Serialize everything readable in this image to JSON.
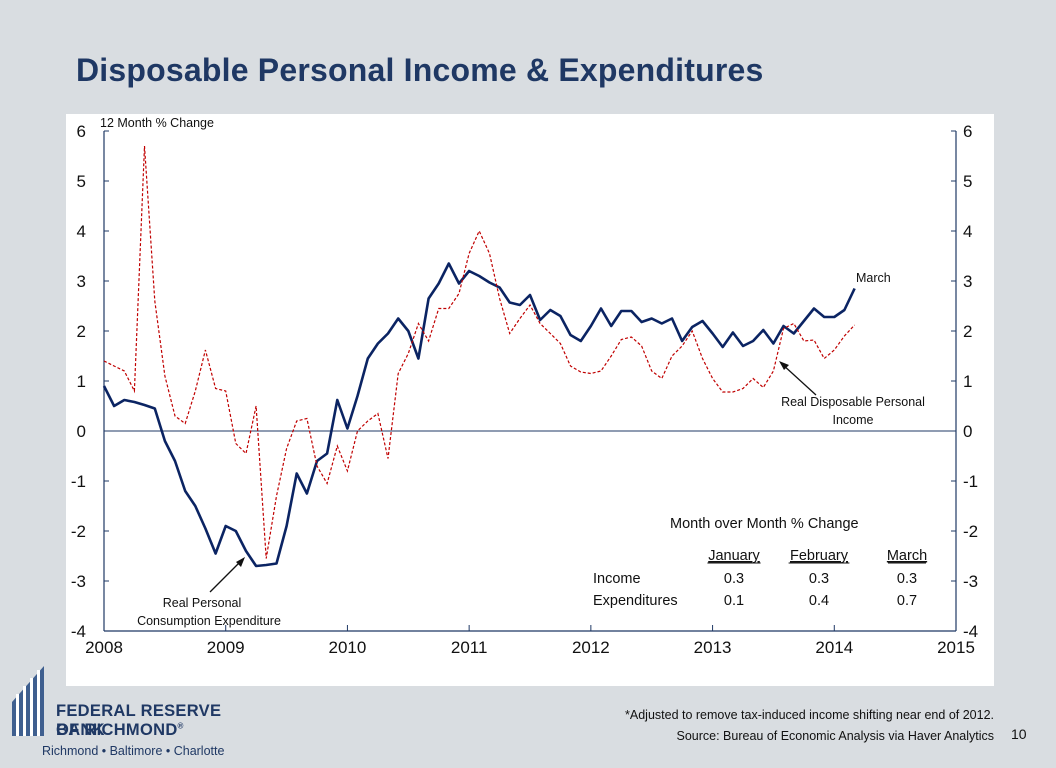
{
  "title": "Disposable Personal Income & Expenditures",
  "colors": {
    "background": "#d9dde1",
    "title": "#1f3864",
    "income": "#0b2463",
    "expenditure": "#c00000",
    "axis": "#1f3864"
  },
  "chart_data": {
    "type": "line",
    "ylabel": "12 Month % Change",
    "ylim": [
      -4,
      6
    ],
    "xlim": [
      2008,
      2015
    ],
    "yticks": [
      "6",
      "5",
      "4",
      "3",
      "2",
      "1",
      "0",
      "-1",
      "-2",
      "-3",
      "-4"
    ],
    "xticks": [
      "2008",
      "2009",
      "2010",
      "2011",
      "2012",
      "2013",
      "2014",
      "2015"
    ],
    "grid": false,
    "series": [
      {
        "name": "Real Disposable Personal Income",
        "style": "solid",
        "x": [
          2008.0,
          2008.083,
          2008.167,
          2008.25,
          2008.333,
          2008.417,
          2008.5,
          2008.583,
          2008.667,
          2008.75,
          2008.833,
          2008.917,
          2009.0,
          2009.083,
          2009.167,
          2009.25,
          2009.333,
          2009.417,
          2009.5,
          2009.583,
          2009.667,
          2009.75,
          2009.833,
          2009.917,
          2010.0,
          2010.083,
          2010.167,
          2010.25,
          2010.333,
          2010.417,
          2010.5,
          2010.583,
          2010.667,
          2010.75,
          2010.833,
          2010.917,
          2011.0,
          2011.083,
          2011.167,
          2011.25,
          2011.333,
          2011.417,
          2011.5,
          2011.583,
          2011.667,
          2011.75,
          2011.833,
          2011.917,
          2012.0,
          2012.083,
          2012.167,
          2012.25,
          2012.333,
          2012.417,
          2012.5,
          2012.583,
          2012.667,
          2012.75,
          2012.833,
          2012.917,
          2013.0,
          2013.083,
          2013.167,
          2013.25,
          2013.333,
          2013.417,
          2013.5,
          2013.583,
          2013.667,
          2013.75,
          2013.833,
          2013.917,
          2014.0,
          2014.083,
          2014.167
        ],
        "values": [
          0.9,
          0.5,
          0.62,
          0.58,
          0.52,
          0.45,
          -0.2,
          -0.6,
          -1.2,
          -1.5,
          -1.95,
          -2.45,
          -1.9,
          -2.0,
          -2.4,
          -2.7,
          -2.68,
          -2.65,
          -1.9,
          -0.85,
          -1.25,
          -0.6,
          -0.45,
          0.62,
          0.05,
          0.7,
          1.45,
          1.75,
          1.95,
          2.25,
          2.0,
          1.45,
          2.65,
          2.95,
          3.35,
          2.95,
          3.2,
          3.1,
          2.97,
          2.87,
          2.57,
          2.52,
          2.72,
          2.22,
          2.42,
          2.3,
          1.92,
          1.8,
          2.1,
          2.45,
          2.1,
          2.4,
          2.4,
          2.18,
          2.25,
          2.15,
          2.25,
          1.8,
          2.08,
          2.2,
          1.95,
          1.68,
          1.97,
          1.7,
          1.8,
          2.02,
          1.75,
          2.1,
          1.95,
          2.2,
          2.45,
          2.28,
          2.28,
          2.42,
          2.85
        ]
      },
      {
        "name": "Real Personal Consumption Expenditure",
        "style": "dashed",
        "x": [
          2008.0,
          2008.083,
          2008.167,
          2008.25,
          2008.333,
          2008.417,
          2008.5,
          2008.583,
          2008.667,
          2008.75,
          2008.833,
          2008.917,
          2009.0,
          2009.083,
          2009.167,
          2009.25,
          2009.333,
          2009.417,
          2009.5,
          2009.583,
          2009.667,
          2009.75,
          2009.833,
          2009.917,
          2010.0,
          2010.083,
          2010.167,
          2010.25,
          2010.333,
          2010.417,
          2010.5,
          2010.583,
          2010.667,
          2010.75,
          2010.833,
          2010.917,
          2011.0,
          2011.083,
          2011.167,
          2011.25,
          2011.333,
          2011.417,
          2011.5,
          2011.583,
          2011.667,
          2011.75,
          2011.833,
          2011.917,
          2012.0,
          2012.083,
          2012.167,
          2012.25,
          2012.333,
          2012.417,
          2012.5,
          2012.583,
          2012.667,
          2012.75,
          2012.833,
          2012.917,
          2013.0,
          2013.083,
          2013.167,
          2013.25,
          2013.333,
          2013.417,
          2013.5,
          2013.583,
          2013.667,
          2013.75,
          2013.833,
          2013.917,
          2014.0,
          2014.083,
          2014.167
        ],
        "values": [
          1.4,
          1.3,
          1.2,
          0.8,
          5.7,
          2.6,
          1.1,
          0.3,
          0.15,
          0.8,
          1.62,
          0.85,
          0.8,
          -0.25,
          -0.45,
          0.5,
          -2.55,
          -1.3,
          -0.35,
          0.2,
          0.25,
          -0.7,
          -1.05,
          -0.3,
          -0.8,
          0.0,
          0.2,
          0.35,
          -0.55,
          1.15,
          1.55,
          2.15,
          1.8,
          2.45,
          2.45,
          2.75,
          3.55,
          4.0,
          3.55,
          2.65,
          1.95,
          2.25,
          2.52,
          2.15,
          1.95,
          1.75,
          1.3,
          1.18,
          1.15,
          1.2,
          1.5,
          1.83,
          1.88,
          1.7,
          1.2,
          1.05,
          1.5,
          1.7,
          2.0,
          1.45,
          1.05,
          0.78,
          0.78,
          0.85,
          1.05,
          0.87,
          1.2,
          2.05,
          2.15,
          1.8,
          1.82,
          1.45,
          1.62,
          1.9,
          2.12
        ]
      }
    ],
    "annotations": {
      "march": "March",
      "income_label": "Real Disposable Personal Income",
      "expenditure_label": "Real Personal Consumption Expenditure"
    },
    "table": {
      "title": "Month over Month % Change",
      "columns": [
        "January",
        "February",
        "March"
      ],
      "rows": [
        {
          "label": "Income",
          "values": [
            "0.3",
            "0.3",
            "0.3"
          ]
        },
        {
          "label": "Expenditures",
          "values": [
            "0.1",
            "0.4",
            "0.7"
          ]
        }
      ]
    }
  },
  "footnotes": {
    "note": "*Adjusted to remove tax-induced income shifting near end of 2012.",
    "source": "Source: Bureau of Economic Analysis via Haver Analytics"
  },
  "page_number": "10",
  "logo": {
    "line1": "FEDERAL RESERVE BANK",
    "line2": "OF RICHMOND",
    "mark": "®",
    "cities": "Richmond • Baltimore • Charlotte"
  }
}
